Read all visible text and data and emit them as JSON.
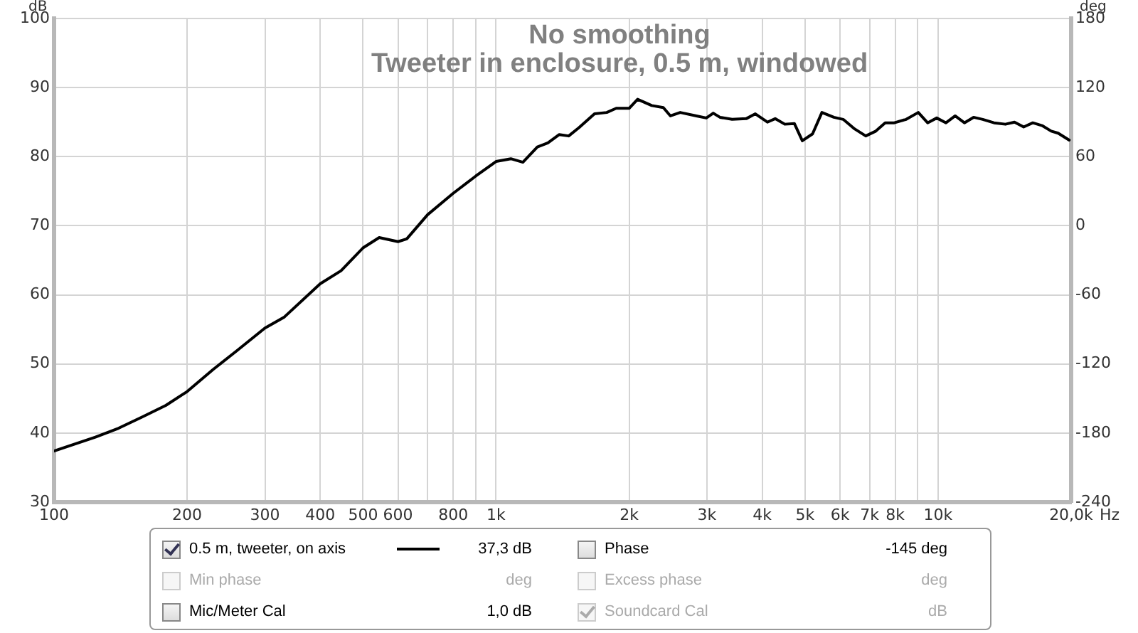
{
  "chart_data": {
    "type": "line",
    "title": "No smoothing",
    "subtitle": "Tweeter in enclosure, 0.5 m, windowed",
    "xlabel": "Hz",
    "ylabel": "dB",
    "y2label": "deg",
    "log": "x",
    "grid": true,
    "legend": "bottom",
    "marker": "none",
    "line_style": "solid",
    "xlim": [
      100,
      20000
    ],
    "ylim": [
      30,
      100
    ],
    "y2lim": [
      -240,
      180
    ],
    "xticks": [
      100,
      200,
      300,
      400,
      500,
      600,
      {
        "value": 700,
        "label": null
      },
      800,
      {
        "value": 900,
        "label": null
      },
      {
        "value": 1000,
        "label": "1k"
      },
      {
        "value": 2000,
        "label": "2k"
      },
      {
        "value": 3000,
        "label": "3k"
      },
      {
        "value": 4000,
        "label": "4k"
      },
      {
        "value": 5000,
        "label": "5k"
      },
      {
        "value": 6000,
        "label": "6k"
      },
      {
        "value": 7000,
        "label": "7k"
      },
      {
        "value": 8000,
        "label": "8k"
      },
      {
        "value": 9000,
        "label": null
      },
      {
        "value": 10000,
        "label": "10k"
      },
      {
        "value": 20000,
        "label": "20,0k"
      }
    ],
    "yticks": [
      30,
      40,
      50,
      60,
      70,
      80,
      90,
      100
    ],
    "y2ticks": [
      -240,
      -180,
      -120,
      -60,
      0,
      60,
      120,
      180
    ],
    "x": [
      100,
      124,
      140,
      158,
      179,
      200,
      229,
      259,
      300,
      332,
      400,
      446,
      500,
      544,
      600,
      628,
      700,
      800,
      900,
      1000,
      1080,
      1150,
      1240,
      1310,
      1390,
      1460,
      1540,
      1670,
      1780,
      1870,
      2000,
      2090,
      2250,
      2390,
      2480,
      2610,
      2840,
      2990,
      3100,
      3210,
      3420,
      3680,
      3860,
      4110,
      4280,
      4500,
      4730,
      4930,
      5200,
      5460,
      5810,
      6100,
      6480,
      6860,
      7230,
      7590,
      7960,
      8470,
      9020,
      9470,
      9930,
      10420,
      10930,
      11470,
      12030,
      12620,
      13380,
      14200,
      14890,
      15620,
      16380,
      17190,
      18030,
      18690,
      19800
    ],
    "series": [
      {
        "name": "0.5 m, tweeter, on axis",
        "color": "#000000",
        "values": [
          37.4,
          39.4,
          40.7,
          42.3,
          44.0,
          46.0,
          49.2,
          51.9,
          55.2,
          56.8,
          61.6,
          63.5,
          66.8,
          68.3,
          67.7,
          68.1,
          71.6,
          74.7,
          77.2,
          79.3,
          79.7,
          79.2,
          81.4,
          82.0,
          83.2,
          83.0,
          84.2,
          86.2,
          86.4,
          87.0,
          87.0,
          88.3,
          87.4,
          87.1,
          85.9,
          86.4,
          85.9,
          85.6,
          86.3,
          85.7,
          85.4,
          85.5,
          86.2,
          85.0,
          85.5,
          84.7,
          84.8,
          82.3,
          83.3,
          86.4,
          85.7,
          85.4,
          84.0,
          83.0,
          83.7,
          84.9,
          84.9,
          85.4,
          86.4,
          84.9,
          85.6,
          84.9,
          85.9,
          84.9,
          85.7,
          85.4,
          84.9,
          84.7,
          85.0,
          84.3,
          84.9,
          84.5,
          83.7,
          83.4,
          82.4
        ]
      }
    ],
    "annotations": [
      "37,3 dB",
      "Phase",
      "-145 deg",
      "Min phase",
      "deg",
      "Excess phase",
      "deg",
      "Mic/Meter Cal",
      "1,0 dB",
      "Soundcard Cal",
      "dB"
    ]
  }
}
